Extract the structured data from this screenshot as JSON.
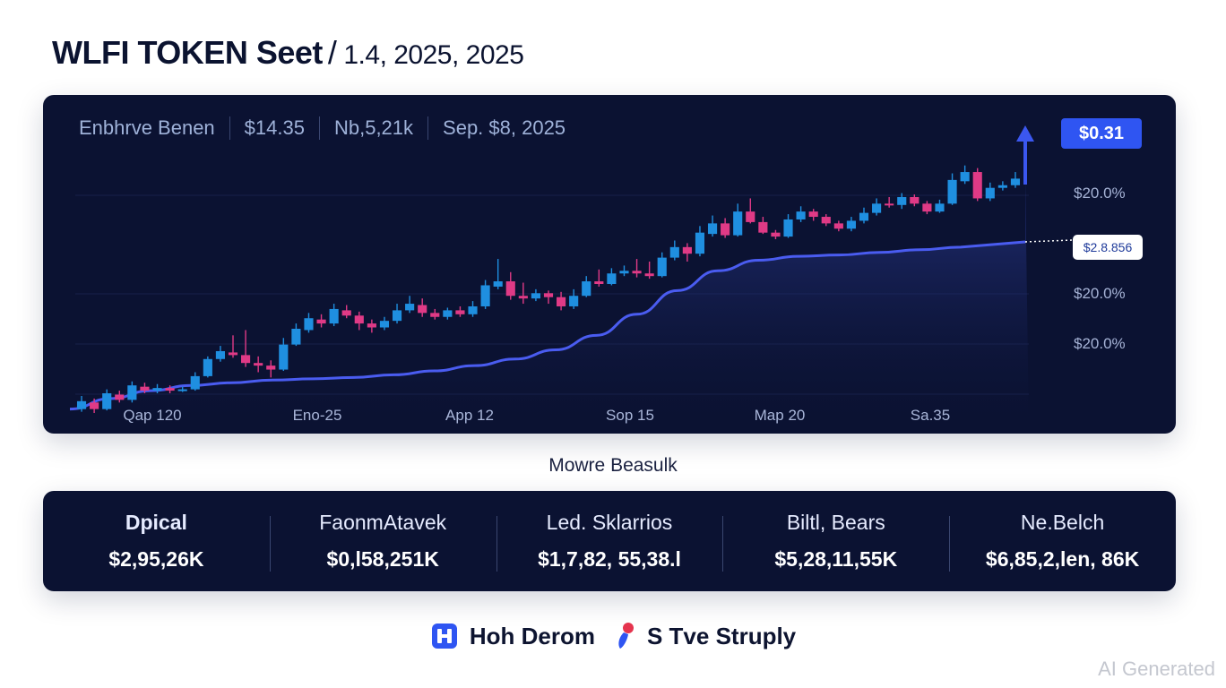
{
  "header": {
    "title": "WLFI TOKEN Seet",
    "separator": "/",
    "date": "1.4, 2025, 2025"
  },
  "stats": [
    "Enbhrve Benen",
    "$14.35",
    "Nb,5,21k",
    "Sep. $8, 2025"
  ],
  "badges": {
    "price": "$0.31",
    "current": "$2.8.856"
  },
  "colors": {
    "bull": "#1f8fe0",
    "bear": "#e03a86",
    "trend": "#4a5cf0",
    "background": "#0b1232",
    "accent": "#2f55f2"
  },
  "chart_data": {
    "type": "candlestick",
    "y_axis_labels": [
      "$20.0%",
      "$20.0%",
      "$20.0%"
    ],
    "x_tick_labels": [
      "Qap 120",
      "Eno-25",
      "App 12",
      "Sop 15",
      "Map 20",
      "Sa.35"
    ],
    "candles": [
      {
        "o": 1.0,
        "c": 1.06,
        "h": 1.1,
        "l": 0.98
      },
      {
        "o": 1.05,
        "c": 1.0,
        "h": 1.08,
        "l": 0.97
      },
      {
        "o": 1.0,
        "c": 1.12,
        "h": 1.15,
        "l": 0.99
      },
      {
        "o": 1.11,
        "c": 1.07,
        "h": 1.14,
        "l": 1.05
      },
      {
        "o": 1.07,
        "c": 1.18,
        "h": 1.21,
        "l": 1.05
      },
      {
        "o": 1.17,
        "c": 1.14,
        "h": 1.2,
        "l": 1.12
      },
      {
        "o": 1.14,
        "c": 1.16,
        "h": 1.19,
        "l": 1.12
      },
      {
        "o": 1.16,
        "c": 1.14,
        "h": 1.18,
        "l": 1.12
      },
      {
        "o": 1.14,
        "c": 1.15,
        "h": 1.17,
        "l": 1.13
      },
      {
        "o": 1.15,
        "c": 1.25,
        "h": 1.28,
        "l": 1.14
      },
      {
        "o": 1.25,
        "c": 1.38,
        "h": 1.4,
        "l": 1.24
      },
      {
        "o": 1.38,
        "c": 1.44,
        "h": 1.48,
        "l": 1.36
      },
      {
        "o": 1.43,
        "c": 1.41,
        "h": 1.56,
        "l": 1.39
      },
      {
        "o": 1.41,
        "c": 1.35,
        "h": 1.6,
        "l": 1.32
      },
      {
        "o": 1.35,
        "c": 1.33,
        "h": 1.4,
        "l": 1.28
      },
      {
        "o": 1.33,
        "c": 1.3,
        "h": 1.37,
        "l": 1.24
      },
      {
        "o": 1.3,
        "c": 1.49,
        "h": 1.54,
        "l": 1.29
      },
      {
        "o": 1.49,
        "c": 1.61,
        "h": 1.65,
        "l": 1.48
      },
      {
        "o": 1.6,
        "c": 1.69,
        "h": 1.73,
        "l": 1.58
      },
      {
        "o": 1.68,
        "c": 1.65,
        "h": 1.72,
        "l": 1.62
      },
      {
        "o": 1.65,
        "c": 1.76,
        "h": 1.8,
        "l": 1.63
      },
      {
        "o": 1.75,
        "c": 1.71,
        "h": 1.79,
        "l": 1.69
      },
      {
        "o": 1.71,
        "c": 1.65,
        "h": 1.74,
        "l": 1.6
      },
      {
        "o": 1.65,
        "c": 1.62,
        "h": 1.68,
        "l": 1.58
      },
      {
        "o": 1.62,
        "c": 1.67,
        "h": 1.7,
        "l": 1.6
      },
      {
        "o": 1.67,
        "c": 1.75,
        "h": 1.8,
        "l": 1.65
      },
      {
        "o": 1.75,
        "c": 1.8,
        "h": 1.86,
        "l": 1.73
      },
      {
        "o": 1.79,
        "c": 1.73,
        "h": 1.84,
        "l": 1.7
      },
      {
        "o": 1.73,
        "c": 1.7,
        "h": 1.76,
        "l": 1.68
      },
      {
        "o": 1.7,
        "c": 1.75,
        "h": 1.77,
        "l": 1.68
      },
      {
        "o": 1.75,
        "c": 1.72,
        "h": 1.78,
        "l": 1.7
      },
      {
        "o": 1.72,
        "c": 1.78,
        "h": 1.82,
        "l": 1.7
      },
      {
        "o": 1.78,
        "c": 1.94,
        "h": 1.98,
        "l": 1.76
      },
      {
        "o": 1.93,
        "c": 1.97,
        "h": 2.14,
        "l": 1.91
      },
      {
        "o": 1.97,
        "c": 1.86,
        "h": 2.04,
        "l": 1.83
      },
      {
        "o": 1.86,
        "c": 1.84,
        "h": 1.96,
        "l": 1.8
      },
      {
        "o": 1.84,
        "c": 1.88,
        "h": 1.91,
        "l": 1.82
      },
      {
        "o": 1.88,
        "c": 1.85,
        "h": 1.9,
        "l": 1.8
      },
      {
        "o": 1.85,
        "c": 1.78,
        "h": 1.89,
        "l": 1.75
      },
      {
        "o": 1.78,
        "c": 1.86,
        "h": 1.91,
        "l": 1.76
      },
      {
        "o": 1.86,
        "c": 1.97,
        "h": 2.01,
        "l": 1.85
      },
      {
        "o": 1.97,
        "c": 1.95,
        "h": 2.06,
        "l": 1.93
      },
      {
        "o": 1.95,
        "c": 2.03,
        "h": 2.07,
        "l": 1.94
      },
      {
        "o": 2.03,
        "c": 2.05,
        "h": 2.09,
        "l": 2.01
      },
      {
        "o": 2.05,
        "c": 2.03,
        "h": 2.14,
        "l": 2.0
      },
      {
        "o": 2.03,
        "c": 2.01,
        "h": 2.12,
        "l": 1.99
      },
      {
        "o": 2.01,
        "c": 2.15,
        "h": 2.19,
        "l": 2.0
      },
      {
        "o": 2.15,
        "c": 2.23,
        "h": 2.28,
        "l": 2.13
      },
      {
        "o": 2.23,
        "c": 2.18,
        "h": 2.26,
        "l": 2.12
      },
      {
        "o": 2.18,
        "c": 2.34,
        "h": 2.39,
        "l": 2.16
      },
      {
        "o": 2.33,
        "c": 2.41,
        "h": 2.47,
        "l": 2.31
      },
      {
        "o": 2.41,
        "c": 2.32,
        "h": 2.45,
        "l": 2.3
      },
      {
        "o": 2.32,
        "c": 2.5,
        "h": 2.56,
        "l": 2.31
      },
      {
        "o": 2.5,
        "c": 2.42,
        "h": 2.6,
        "l": 2.41
      },
      {
        "o": 2.42,
        "c": 2.34,
        "h": 2.46,
        "l": 2.33
      },
      {
        "o": 2.34,
        "c": 2.31,
        "h": 2.36,
        "l": 2.29
      },
      {
        "o": 2.31,
        "c": 2.44,
        "h": 2.48,
        "l": 2.3
      },
      {
        "o": 2.44,
        "c": 2.5,
        "h": 2.54,
        "l": 2.42
      },
      {
        "o": 2.5,
        "c": 2.46,
        "h": 2.52,
        "l": 2.43
      },
      {
        "o": 2.46,
        "c": 2.41,
        "h": 2.48,
        "l": 2.39
      },
      {
        "o": 2.41,
        "c": 2.37,
        "h": 2.43,
        "l": 2.35
      },
      {
        "o": 2.37,
        "c": 2.43,
        "h": 2.46,
        "l": 2.35
      },
      {
        "o": 2.43,
        "c": 2.49,
        "h": 2.53,
        "l": 2.41
      },
      {
        "o": 2.49,
        "c": 2.56,
        "h": 2.6,
        "l": 2.47
      },
      {
        "o": 2.56,
        "c": 2.55,
        "h": 2.61,
        "l": 2.53
      },
      {
        "o": 2.55,
        "c": 2.61,
        "h": 2.64,
        "l": 2.52
      },
      {
        "o": 2.61,
        "c": 2.56,
        "h": 2.63,
        "l": 2.54
      },
      {
        "o": 2.56,
        "c": 2.5,
        "h": 2.58,
        "l": 2.48
      },
      {
        "o": 2.5,
        "c": 2.56,
        "h": 2.59,
        "l": 2.49
      },
      {
        "o": 2.56,
        "c": 2.74,
        "h": 2.79,
        "l": 2.55
      },
      {
        "o": 2.73,
        "c": 2.8,
        "h": 2.85,
        "l": 2.71
      },
      {
        "o": 2.8,
        "c": 2.6,
        "h": 2.83,
        "l": 2.58
      },
      {
        "o": 2.6,
        "c": 2.68,
        "h": 2.72,
        "l": 2.58
      },
      {
        "o": 2.68,
        "c": 2.7,
        "h": 2.73,
        "l": 2.66
      },
      {
        "o": 2.7,
        "c": 2.75,
        "h": 2.8,
        "l": 2.68
      }
    ],
    "trend_line": [
      1.0,
      1.08,
      1.14,
      1.18,
      1.2,
      1.22,
      1.23,
      1.24,
      1.26,
      1.29,
      1.33,
      1.38,
      1.45,
      1.56,
      1.72,
      1.9,
      2.05,
      2.13,
      2.16,
      2.17,
      2.19,
      2.21,
      2.23
    ],
    "trend_forecast": [
      2.23,
      2.27
    ],
    "arrow_target": 2.95
  },
  "subheading": "Mowre Beasulk",
  "summary": [
    {
      "label": "Dpical",
      "value": "$2,95,26K",
      "bold": true
    },
    {
      "label": "FaonmAtavek",
      "value": "$0,l58,251K",
      "bold": false
    },
    {
      "label": "Led. Sklarrios",
      "value": "$1,7,82, 55,38.l",
      "bold": false
    },
    {
      "label": "Biltl, Bears",
      "value": "$5,28,11,55K",
      "bold": false
    },
    {
      "label": "Ne.Belch",
      "value": "$6,85,2,len, 86K",
      "bold": false
    }
  ],
  "footer": {
    "brand1": "Hoh Derom",
    "brand1_icon": "shield-logo-icon",
    "brand2": "S Tve Struply",
    "brand2_icon": "pin-logo-icon"
  },
  "watermark": "AI Generated"
}
